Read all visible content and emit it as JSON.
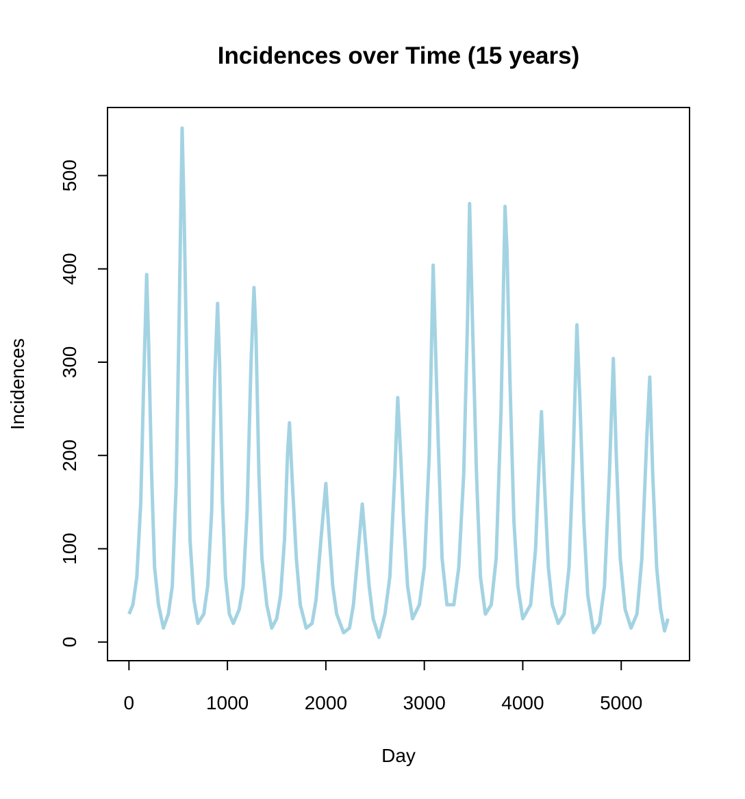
{
  "chart_data": {
    "type": "line",
    "title": "Incidences over Time (15 years)",
    "x_label": "Day",
    "y_label": "Incidences",
    "x": [
      1,
      40,
      80,
      120,
      150,
      180,
      200,
      230,
      260,
      300,
      350,
      400,
      440,
      480,
      510,
      540,
      560,
      590,
      620,
      660,
      700,
      760,
      800,
      840,
      870,
      900,
      920,
      950,
      980,
      1020,
      1060,
      1120,
      1160,
      1200,
      1240,
      1270,
      1290,
      1320,
      1350,
      1400,
      1450,
      1500,
      1540,
      1580,
      1610,
      1630,
      1660,
      1700,
      1740,
      1800,
      1860,
      1900,
      1950,
      2000,
      2030,
      2070,
      2110,
      2180,
      2240,
      2280,
      2330,
      2370,
      2400,
      2440,
      2480,
      2540,
      2600,
      2650,
      2700,
      2730,
      2760,
      2790,
      2830,
      2880,
      2950,
      3000,
      3050,
      3090,
      3110,
      3140,
      3180,
      3230,
      3300,
      3350,
      3400,
      3440,
      3460,
      3490,
      3530,
      3570,
      3620,
      3680,
      3730,
      3780,
      3820,
      3840,
      3870,
      3910,
      3950,
      4000,
      4080,
      4130,
      4170,
      4190,
      4220,
      4260,
      4300,
      4360,
      4420,
      4470,
      4510,
      4550,
      4580,
      4620,
      4660,
      4720,
      4780,
      4830,
      4880,
      4920,
      4950,
      4990,
      5040,
      5100,
      5160,
      5210,
      5260,
      5290,
      5320,
      5360,
      5400,
      5440,
      5475
    ],
    "series": [
      {
        "name": "Incidences",
        "color": "#a3d3e3",
        "values": [
          30,
          40,
          70,
          150,
          280,
          394,
          320,
          180,
          80,
          40,
          15,
          30,
          60,
          170,
          350,
          551,
          460,
          280,
          110,
          45,
          20,
          30,
          60,
          140,
          280,
          363,
          300,
          150,
          70,
          30,
          20,
          35,
          60,
          140,
          300,
          380,
          330,
          180,
          90,
          40,
          15,
          25,
          50,
          110,
          200,
          235,
          170,
          90,
          40,
          15,
          20,
          45,
          110,
          170,
          120,
          60,
          30,
          10,
          15,
          40,
          100,
          148,
          110,
          60,
          25,
          5,
          30,
          70,
          180,
          262,
          200,
          130,
          60,
          25,
          40,
          80,
          200,
          404,
          330,
          220,
          90,
          40,
          40,
          80,
          180,
          350,
          470,
          340,
          180,
          70,
          30,
          40,
          90,
          250,
          467,
          420,
          280,
          130,
          60,
          25,
          40,
          100,
          200,
          247,
          170,
          80,
          40,
          20,
          30,
          80,
          190,
          340,
          260,
          130,
          50,
          10,
          20,
          60,
          180,
          304,
          200,
          90,
          35,
          15,
          30,
          90,
          220,
          284,
          180,
          80,
          35,
          12,
          25
        ]
      }
    ],
    "xlim": [
      -218,
      5694
    ],
    "ylim": [
      -20,
      573
    ],
    "xticks": [
      0,
      1000,
      2000,
      3000,
      4000,
      5000
    ],
    "yticks": [
      0,
      100,
      200,
      300,
      400,
      500
    ]
  }
}
